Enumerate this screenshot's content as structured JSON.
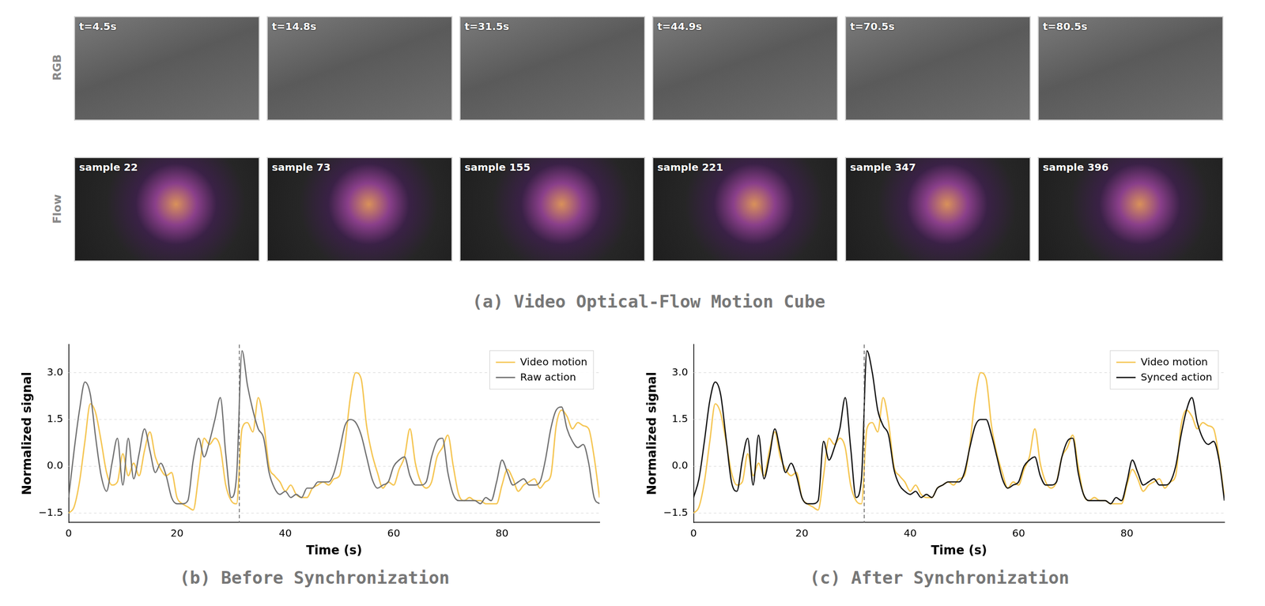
{
  "panel_a": {
    "caption": "(a) Video Optical-Flow Motion Cube",
    "rows": [
      {
        "label": "RGB",
        "frames": [
          "t=4.5s",
          "t=14.8s",
          "t=31.5s",
          "t=44.9s",
          "t=70.5s",
          "t=80.5s"
        ]
      },
      {
        "label": "Flow",
        "frames": [
          "sample 22",
          "sample 73",
          "sample 155",
          "sample 221",
          "sample 347",
          "sample 396"
        ]
      }
    ]
  },
  "chart_data": [
    {
      "type": "line",
      "caption": "(b) Before Synchronization",
      "x_label": "Time (s)",
      "y_label": "Normalized signal",
      "x": [
        0,
        1,
        2,
        3,
        4,
        5,
        6,
        7,
        8,
        9,
        10,
        11,
        12,
        13,
        14,
        15,
        16,
        17,
        18,
        19,
        20,
        21,
        22,
        23,
        24,
        25,
        26,
        27,
        28,
        29,
        30,
        31,
        32,
        33,
        34,
        35,
        36,
        37,
        38,
        39,
        40,
        41,
        42,
        43,
        44,
        45,
        46,
        47,
        48,
        49,
        50,
        51,
        52,
        53,
        54,
        55,
        56,
        57,
        58,
        59,
        60,
        61,
        62,
        63,
        64,
        65,
        66,
        67,
        68,
        69,
        70,
        71,
        72,
        73,
        74,
        75,
        76,
        77,
        78,
        79,
        80,
        81,
        82,
        83,
        84,
        85,
        86,
        87,
        88,
        89,
        90,
        91,
        92,
        93,
        94,
        95,
        96,
        97,
        98
      ],
      "series": [
        {
          "name": "Video motion",
          "color": "#f5c551",
          "values": [
            -1.5,
            -1.3,
            -0.5,
            0.8,
            2.0,
            1.7,
            0.8,
            -0.2,
            -0.6,
            -0.5,
            0.4,
            -0.3,
            0.1,
            -0.3,
            0.5,
            1.1,
            0.3,
            -0.1,
            -0.3,
            -0.2,
            -1.0,
            -1.2,
            -1.3,
            -1.4,
            -0.3,
            0.9,
            0.7,
            0.9,
            0.6,
            -0.6,
            -1.1,
            -1.2,
            1.2,
            1.4,
            1.1,
            2.2,
            1.4,
            0.0,
            -0.3,
            -0.5,
            -0.8,
            -0.6,
            -0.9,
            -1.0,
            -1.0,
            -0.7,
            -0.6,
            -0.5,
            -0.6,
            -0.4,
            -0.3,
            0.7,
            2.2,
            3.0,
            2.8,
            1.3,
            0.4,
            -0.2,
            -0.7,
            -0.5,
            -0.6,
            -0.1,
            0.3,
            1.2,
            0.1,
            -0.5,
            -0.7,
            -0.5,
            0.3,
            0.6,
            1.0,
            0.0,
            -0.9,
            -1.1,
            -1.0,
            -1.1,
            -1.1,
            -1.2,
            -1.2,
            -1.2,
            -0.6,
            -0.1,
            -0.4,
            -0.8,
            -0.6,
            -0.5,
            -0.4,
            -0.7,
            -0.5,
            -0.3,
            1.3,
            1.8,
            1.6,
            1.2,
            1.4,
            1.3,
            1.2,
            0.3,
            -1.0
          ]
        },
        {
          "name": "Raw action",
          "color": "#6f6f6f",
          "values": [
            -1.0,
            0.5,
            1.8,
            2.7,
            2.3,
            0.9,
            -0.3,
            -0.8,
            0.1,
            0.9,
            -0.6,
            0.9,
            -0.4,
            0.4,
            1.2,
            0.5,
            -0.2,
            0.1,
            -0.3,
            -1.0,
            -1.2,
            -1.2,
            -1.1,
            0.2,
            0.9,
            0.3,
            0.8,
            1.5,
            2.2,
            0.4,
            -1.0,
            -0.3,
            3.7,
            2.6,
            1.8,
            1.2,
            0.9,
            -0.2,
            -0.7,
            -0.9,
            -0.8,
            -1.0,
            -0.9,
            -1.0,
            -0.7,
            -0.7,
            -0.5,
            -0.5,
            -0.5,
            -0.2,
            0.5,
            1.3,
            1.5,
            1.4,
            1.0,
            0.3,
            -0.4,
            -0.7,
            -0.6,
            -0.5,
            0.0,
            0.2,
            0.3,
            -0.3,
            -0.6,
            -0.6,
            -0.5,
            0.3,
            0.8,
            0.9,
            -0.2,
            -0.9,
            -1.1,
            -1.1,
            -1.1,
            -1.1,
            -1.2,
            -1.0,
            -1.1,
            -0.5,
            0.2,
            -0.2,
            -0.6,
            -0.5,
            -0.4,
            -0.6,
            -0.6,
            -0.5,
            0.2,
            1.2,
            1.8,
            1.9,
            1.2,
            0.8,
            0.6,
            0.7,
            0.1,
            -1.0,
            -1.2
          ]
        }
      ],
      "xlim": [
        0,
        98
      ],
      "xticks": [
        0,
        20,
        40,
        60,
        80
      ],
      "ylim": [
        -1.8,
        3.9
      ],
      "yticks": [
        {
          "value": -1.5,
          "label": "−1.5"
        },
        {
          "value": 0,
          "label": "0.0"
        },
        1.5,
        {
          "value": 3,
          "label": "3.0"
        }
      ],
      "grid": true,
      "legend": "upper right",
      "annotations": [
        {
          "x": 31.5,
          "line_style": "dashed",
          "color": "#666666"
        }
      ]
    },
    {
      "type": "line",
      "caption": "(c) After Synchronization",
      "x_label": "Time (s)",
      "y_label": "Normalized signal",
      "x": [
        0,
        1,
        2,
        3,
        4,
        5,
        6,
        7,
        8,
        9,
        10,
        11,
        12,
        13,
        14,
        15,
        16,
        17,
        18,
        19,
        20,
        21,
        22,
        23,
        24,
        25,
        26,
        27,
        28,
        29,
        30,
        31,
        32,
        33,
        34,
        35,
        36,
        37,
        38,
        39,
        40,
        41,
        42,
        43,
        44,
        45,
        46,
        47,
        48,
        49,
        50,
        51,
        52,
        53,
        54,
        55,
        56,
        57,
        58,
        59,
        60,
        61,
        62,
        63,
        64,
        65,
        66,
        67,
        68,
        69,
        70,
        71,
        72,
        73,
        74,
        75,
        76,
        77,
        78,
        79,
        80,
        81,
        82,
        83,
        84,
        85,
        86,
        87,
        88,
        89,
        90,
        91,
        92,
        93,
        94,
        95,
        96,
        97,
        98
      ],
      "series": [
        {
          "name": "Video motion",
          "color": "#f5c551",
          "values": [
            -1.5,
            -1.3,
            -0.5,
            0.8,
            2.0,
            1.7,
            0.8,
            -0.2,
            -0.6,
            -0.5,
            0.4,
            -0.3,
            0.1,
            -0.3,
            0.5,
            1.1,
            0.3,
            -0.1,
            -0.3,
            -0.2,
            -1.0,
            -1.2,
            -1.3,
            -1.4,
            -0.3,
            0.9,
            0.7,
            0.9,
            0.6,
            -0.6,
            -1.1,
            -1.2,
            1.2,
            1.4,
            1.1,
            2.2,
            1.4,
            0.0,
            -0.3,
            -0.5,
            -0.8,
            -0.6,
            -0.9,
            -1.0,
            -1.0,
            -0.7,
            -0.6,
            -0.5,
            -0.6,
            -0.4,
            -0.3,
            0.7,
            2.2,
            3.0,
            2.8,
            1.3,
            0.4,
            -0.2,
            -0.7,
            -0.5,
            -0.6,
            -0.1,
            0.3,
            1.2,
            0.1,
            -0.5,
            -0.7,
            -0.5,
            0.3,
            0.6,
            1.0,
            0.0,
            -0.9,
            -1.1,
            -1.0,
            -1.1,
            -1.1,
            -1.2,
            -1.2,
            -1.2,
            -0.6,
            -0.1,
            -0.4,
            -0.8,
            -0.6,
            -0.5,
            -0.4,
            -0.7,
            -0.5,
            -0.3,
            1.3,
            1.8,
            1.6,
            1.2,
            1.4,
            1.3,
            1.2,
            0.3,
            -1.0
          ]
        },
        {
          "name": "Synced action",
          "color": "#111111",
          "values": [
            -1.0,
            -0.4,
            0.8,
            2.1,
            2.7,
            2.3,
            0.9,
            -0.5,
            -0.8,
            0.2,
            0.9,
            -0.6,
            1.0,
            -0.4,
            0.3,
            1.2,
            0.5,
            -0.2,
            0.1,
            -0.3,
            -1.0,
            -1.2,
            -1.2,
            -1.1,
            0.8,
            0.2,
            0.6,
            1.2,
            2.2,
            0.6,
            -1.0,
            -0.4,
            3.7,
            3.0,
            1.8,
            1.3,
            1.0,
            -0.1,
            -0.6,
            -0.8,
            -0.9,
            -0.8,
            -1.0,
            -0.9,
            -1.0,
            -0.7,
            -0.6,
            -0.5,
            -0.5,
            -0.5,
            -0.2,
            0.6,
            1.3,
            1.5,
            1.5,
            1.0,
            0.3,
            -0.4,
            -0.7,
            -0.6,
            -0.5,
            0.0,
            0.2,
            0.3,
            -0.3,
            -0.6,
            -0.6,
            -0.5,
            0.3,
            0.8,
            0.9,
            -0.2,
            -0.9,
            -1.1,
            -1.1,
            -1.1,
            -1.1,
            -1.2,
            -1.0,
            -1.1,
            -0.5,
            0.2,
            -0.2,
            -0.6,
            -0.5,
            -0.4,
            -0.6,
            -0.6,
            -0.5,
            0.0,
            1.0,
            1.8,
            2.2,
            1.4,
            0.9,
            0.7,
            0.8,
            0.2,
            -1.1
          ]
        }
      ],
      "xlim": [
        0,
        98
      ],
      "xticks": [
        0,
        20,
        40,
        60,
        80
      ],
      "ylim": [
        -1.8,
        3.9
      ],
      "yticks": [
        {
          "value": -1.5,
          "label": "−1.5"
        },
        {
          "value": 0,
          "label": "0.0"
        },
        1.5,
        {
          "value": 3,
          "label": "3.0"
        }
      ],
      "grid": true,
      "legend": "upper right",
      "annotations": [
        {
          "x": 31.5,
          "line_style": "dashed",
          "color": "#666666"
        }
      ]
    }
  ]
}
